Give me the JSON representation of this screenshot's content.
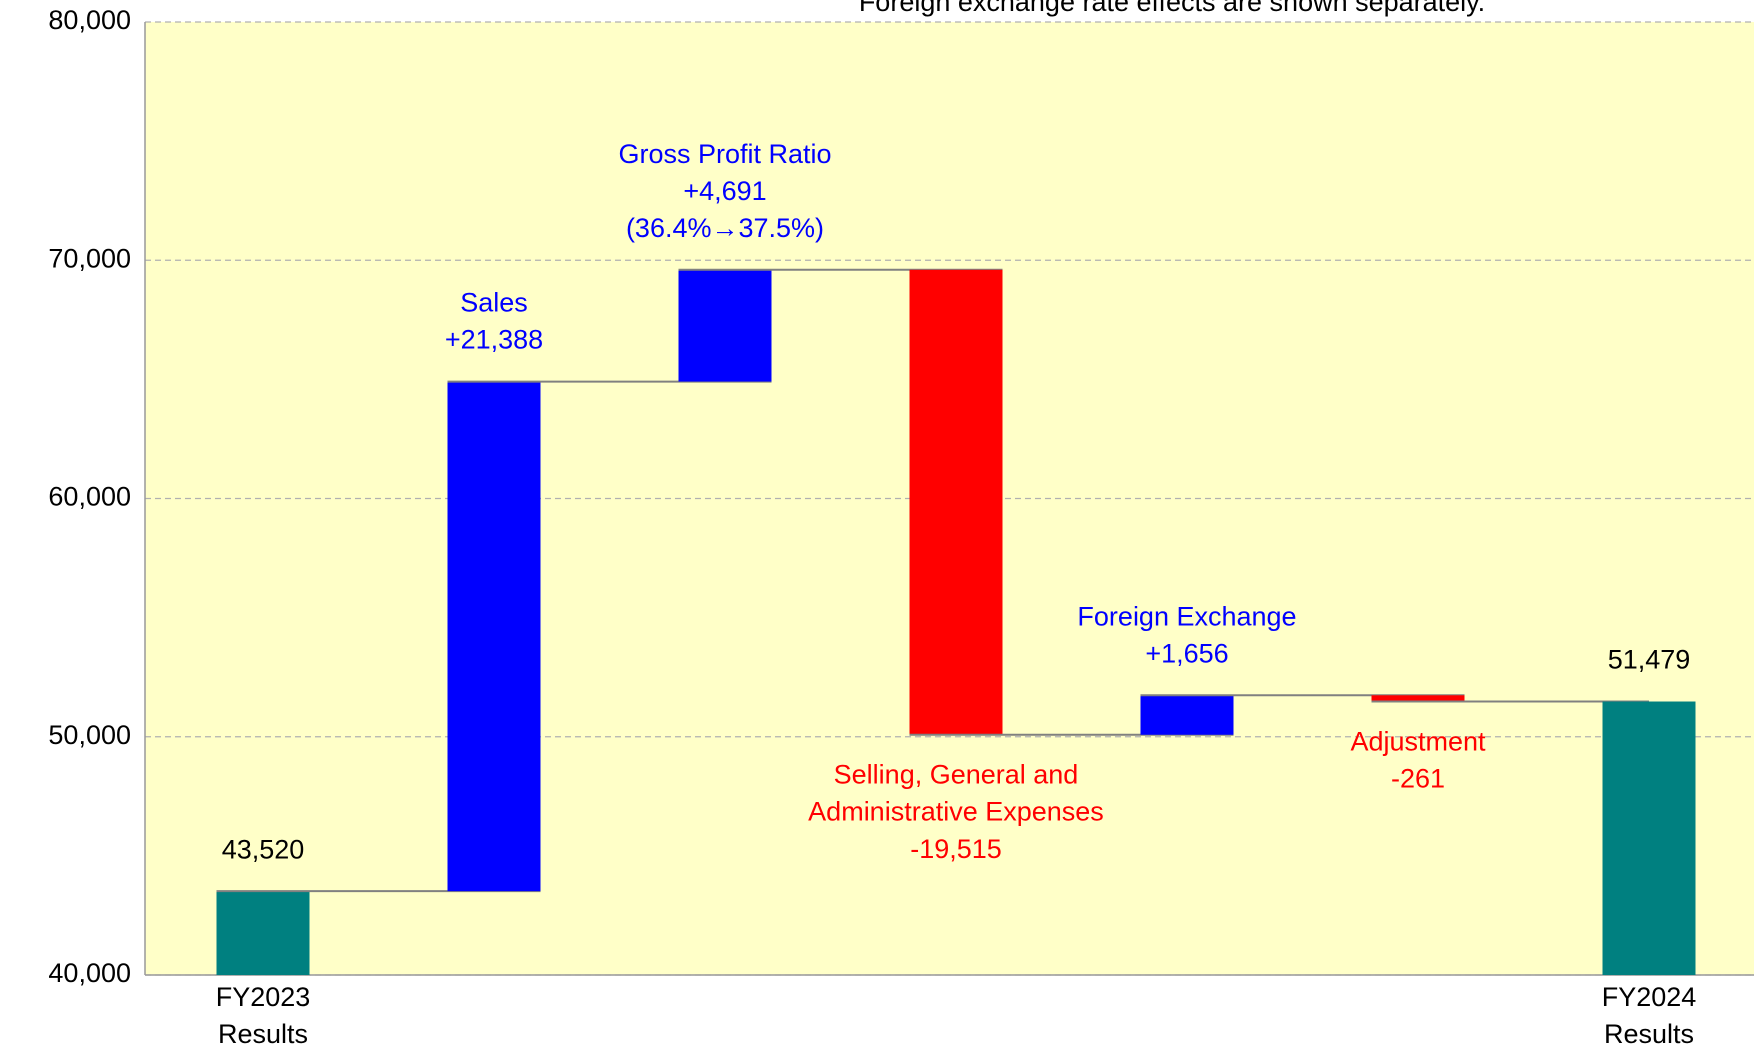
{
  "chart_data": {
    "type": "waterfall",
    "subtitle": "Foreign exchange rate effects are shown separately.",
    "categories": [
      "FY2023\nResults",
      null,
      null,
      null,
      null,
      null,
      "FY2024\nResults"
    ],
    "measures": [
      "total",
      "relative",
      "relative",
      "relative",
      "relative",
      "relative",
      "total"
    ],
    "values": [
      43520,
      21388,
      4691,
      -19515,
      1656,
      -261,
      51479
    ],
    "value_labels": [
      "43,520",
      "+21,388",
      "+4,691",
      "-19,515",
      "+1,656",
      "-261",
      "51,479"
    ],
    "step_names": [
      null,
      "Sales",
      "Gross Profit Ratio",
      "Selling, General and\nAdministrative Expenses",
      "Foreign Exchange",
      "Adjustment",
      null
    ],
    "notes": [
      null,
      null,
      "(36.4%→37.5%)",
      null,
      null,
      null,
      null
    ],
    "colors": {
      "total": "#008080",
      "increase": "#0000ff",
      "decrease": "#ff0000"
    },
    "background": "#ffffc8",
    "ylim": [
      40000,
      80000
    ],
    "yticks": [
      {
        "value": 40000,
        "label": "40,000"
      },
      {
        "value": 50000,
        "label": "50,000"
      },
      {
        "value": 60000,
        "label": "60,000"
      },
      {
        "value": 70000,
        "label": "70,000"
      },
      {
        "value": 80000,
        "label": "80,000"
      }
    ],
    "grid": true
  }
}
